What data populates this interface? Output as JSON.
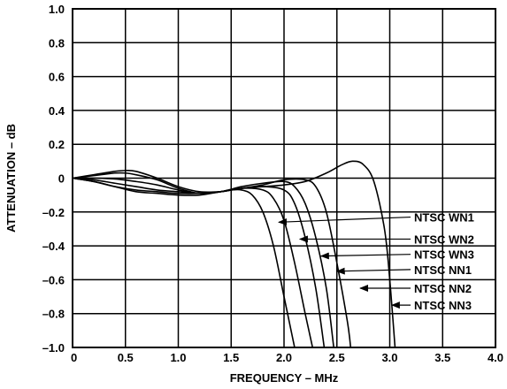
{
  "chart_data": {
    "type": "line",
    "xlabel": "FREQUENCY – MHz",
    "ylabel": "ATTENUATION – dB",
    "xlim": [
      0,
      4.0
    ],
    "ylim": [
      -1.0,
      1.0
    ],
    "x_ticks": [
      {
        "value": 0,
        "label": "0"
      },
      {
        "value": 0.5,
        "label": "0.5"
      },
      {
        "value": 1.0,
        "label": "1.0"
      },
      {
        "value": 1.5,
        "label": "1.5"
      },
      {
        "value": 2.0,
        "label": "2.0"
      },
      {
        "value": 2.5,
        "label": "2.5"
      },
      {
        "value": 3.0,
        "label": "3.0"
      },
      {
        "value": 3.5,
        "label": "3.5"
      },
      {
        "value": 4.0,
        "label": "4.0"
      }
    ],
    "y_ticks": [
      {
        "value": 1.0,
        "label": "1.0"
      },
      {
        "value": 0.8,
        "label": "0.8"
      },
      {
        "value": 0.6,
        "label": "0.6"
      },
      {
        "value": 0.4,
        "label": "0.4"
      },
      {
        "value": 0.2,
        "label": "0.2"
      },
      {
        "value": 0,
        "label": "0"
      },
      {
        "value": -0.2,
        "label": "–0.2"
      },
      {
        "value": -0.4,
        "label": "–0.4"
      },
      {
        "value": -0.6,
        "label": "–0.6"
      },
      {
        "value": -0.8,
        "label": "–0.8"
      },
      {
        "value": -1.0,
        "label": "–1.0"
      }
    ],
    "grid": true,
    "series": [
      {
        "name": "NTSC WN1",
        "arrow_tip": [
          1.95,
          -0.26
        ],
        "label_y": -0.23,
        "points": [
          [
            0,
            0
          ],
          [
            0.2,
            0.02
          ],
          [
            0.4,
            0.04
          ],
          [
            0.5,
            0.045
          ],
          [
            0.6,
            0.04
          ],
          [
            0.8,
            0.0
          ],
          [
            1.0,
            -0.05
          ],
          [
            1.2,
            -0.08
          ],
          [
            1.4,
            -0.08
          ],
          [
            1.5,
            -0.07
          ],
          [
            1.6,
            -0.07
          ],
          [
            1.7,
            -0.1
          ],
          [
            1.8,
            -0.2
          ],
          [
            1.9,
            -0.4
          ],
          [
            2.0,
            -0.7
          ],
          [
            2.1,
            -1.0
          ]
        ]
      },
      {
        "name": "NTSC WN2",
        "arrow_tip": [
          2.15,
          -0.36
        ],
        "label_y": -0.36,
        "points": [
          [
            0,
            0
          ],
          [
            0.2,
            0.015
          ],
          [
            0.4,
            0.03
          ],
          [
            0.5,
            0.03
          ],
          [
            0.6,
            0.02
          ],
          [
            0.8,
            -0.01
          ],
          [
            1.0,
            -0.06
          ],
          [
            1.2,
            -0.09
          ],
          [
            1.4,
            -0.08
          ],
          [
            1.6,
            -0.06
          ],
          [
            1.8,
            -0.07
          ],
          [
            1.9,
            -0.12
          ],
          [
            2.0,
            -0.25
          ],
          [
            2.1,
            -0.5
          ],
          [
            2.2,
            -0.8
          ],
          [
            2.27,
            -1.0
          ]
        ]
      },
      {
        "name": "NTSC WN3",
        "arrow_tip": [
          2.35,
          -0.46
        ],
        "label_y": -0.45,
        "points": [
          [
            0,
            0
          ],
          [
            0.2,
            0.0
          ],
          [
            0.4,
            -0.005
          ],
          [
            0.6,
            -0.02
          ],
          [
            0.8,
            -0.04
          ],
          [
            1.0,
            -0.07
          ],
          [
            1.2,
            -0.09
          ],
          [
            1.4,
            -0.08
          ],
          [
            1.6,
            -0.06
          ],
          [
            1.8,
            -0.05
          ],
          [
            2.0,
            -0.07
          ],
          [
            2.1,
            -0.15
          ],
          [
            2.2,
            -0.35
          ],
          [
            2.3,
            -0.65
          ],
          [
            2.38,
            -1.0
          ]
        ]
      },
      {
        "name": "NTSC NN1",
        "arrow_tip": [
          2.5,
          -0.55
        ],
        "label_y": -0.54,
        "points": [
          [
            0,
            0
          ],
          [
            0.2,
            -0.01
          ],
          [
            0.4,
            -0.03
          ],
          [
            0.6,
            -0.05
          ],
          [
            0.8,
            -0.07
          ],
          [
            1.0,
            -0.08
          ],
          [
            1.2,
            -0.09
          ],
          [
            1.4,
            -0.08
          ],
          [
            1.6,
            -0.05
          ],
          [
            1.8,
            -0.03
          ],
          [
            2.0,
            -0.02
          ],
          [
            2.1,
            -0.05
          ],
          [
            2.2,
            -0.15
          ],
          [
            2.3,
            -0.35
          ],
          [
            2.4,
            -0.65
          ],
          [
            2.47,
            -1.0
          ]
        ]
      },
      {
        "name": "NTSC NN2",
        "arrow_tip": [
          2.72,
          -0.65
        ],
        "label_y": -0.65,
        "points": [
          [
            0,
            0
          ],
          [
            0.2,
            -0.02
          ],
          [
            0.4,
            -0.05
          ],
          [
            0.6,
            -0.07
          ],
          [
            0.8,
            -0.08
          ],
          [
            1.0,
            -0.09
          ],
          [
            1.2,
            -0.09
          ],
          [
            1.4,
            -0.08
          ],
          [
            1.6,
            -0.06
          ],
          [
            1.8,
            -0.04
          ],
          [
            2.0,
            -0.01
          ],
          [
            2.2,
            -0.01
          ],
          [
            2.3,
            -0.05
          ],
          [
            2.4,
            -0.2
          ],
          [
            2.5,
            -0.5
          ],
          [
            2.6,
            -0.85
          ],
          [
            2.63,
            -1.0
          ]
        ]
      },
      {
        "name": "NTSC NN3",
        "arrow_tip": [
          3.02,
          -0.75
        ],
        "label_y": -0.75,
        "points": [
          [
            0,
            0
          ],
          [
            0.2,
            -0.02
          ],
          [
            0.4,
            -0.05
          ],
          [
            0.6,
            -0.08
          ],
          [
            0.8,
            -0.09
          ],
          [
            1.0,
            -0.1
          ],
          [
            1.2,
            -0.1
          ],
          [
            1.4,
            -0.08
          ],
          [
            1.6,
            -0.06
          ],
          [
            1.8,
            -0.05
          ],
          [
            2.0,
            -0.04
          ],
          [
            2.2,
            -0.02
          ],
          [
            2.4,
            0.03
          ],
          [
            2.55,
            0.08
          ],
          [
            2.65,
            0.1
          ],
          [
            2.75,
            0.08
          ],
          [
            2.85,
            -0.02
          ],
          [
            2.95,
            -0.3
          ],
          [
            3.0,
            -0.6
          ],
          [
            3.05,
            -1.0
          ]
        ]
      }
    ]
  }
}
